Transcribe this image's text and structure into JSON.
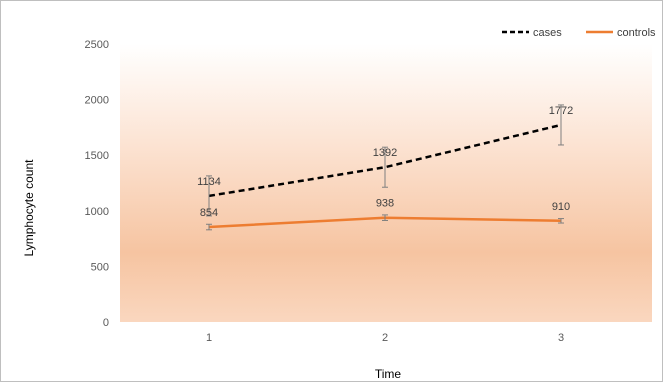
{
  "chart_data": {
    "type": "line",
    "title": "",
    "xlabel": "Time",
    "ylabel": "Lymphocyte count",
    "categories": [
      "1",
      "2",
      "3"
    ],
    "ylim": [
      0,
      2500
    ],
    "yticks": [
      "0",
      "500",
      "1000",
      "1500",
      "2000",
      "2500"
    ],
    "grid": false,
    "legend_position": "top-right",
    "series": [
      {
        "name": "cases",
        "values": [
          1134,
          1392,
          1772
        ],
        "errors": [
          180,
          180,
          180
        ],
        "labels": [
          "1134",
          "1392",
          "1772"
        ],
        "color": "#000000",
        "style": "dashed"
      },
      {
        "name": "controls",
        "values": [
          854,
          938,
          910
        ],
        "errors": [
          25,
          25,
          20
        ],
        "labels": [
          "854",
          "938",
          "910"
        ],
        "color": "#ED7D31",
        "style": "solid"
      }
    ]
  }
}
